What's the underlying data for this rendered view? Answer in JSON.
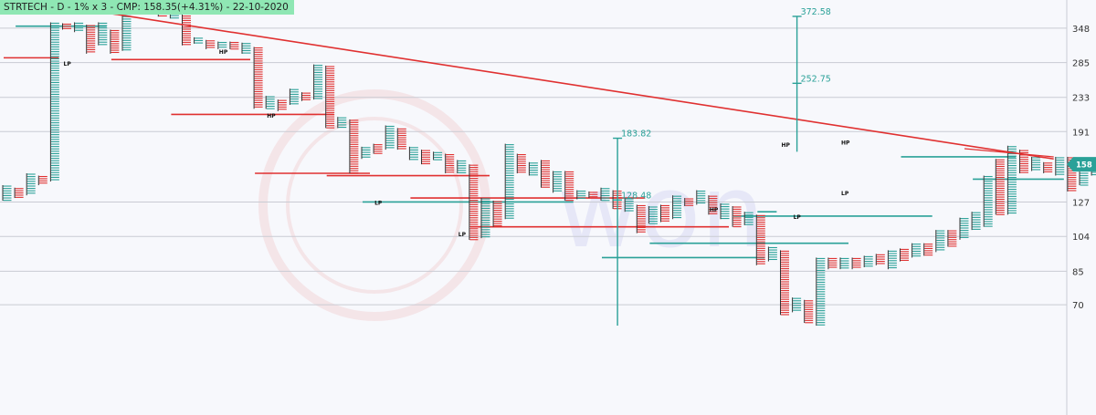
{
  "header": {
    "title": "STRTECH - D - 1% x 3 - CMP: 158.35(+4.31%) - 22-10-2020"
  },
  "watermark": {
    "text": "won"
  },
  "colors": {
    "x_column": "#2aa198",
    "o_column": "#e03030",
    "trendline": "#e03030",
    "target": "#2aa198",
    "price_tag": "#2aa198"
  },
  "chart_data": {
    "type": "point-and-figure",
    "title": "STRTECH - D - 1% x 3 - CMP: 158.35(+4.31%) - 22-10-2020",
    "y_scale": "log",
    "ylim": [
      60,
      420
    ],
    "yticks": [
      348,
      285,
      233,
      191,
      158,
      127,
      104,
      85,
      70
    ],
    "current_price": 158,
    "grid": true,
    "columns": [
      {
        "t": "X",
        "lo": 128,
        "hi": 140
      },
      {
        "t": "O",
        "lo": 130,
        "hi": 138
      },
      {
        "t": "X",
        "lo": 132,
        "hi": 150
      },
      {
        "t": "O",
        "lo": 140,
        "hi": 148
      },
      {
        "t": "X",
        "lo": 143,
        "hi": 360
      },
      {
        "t": "O",
        "lo": 345,
        "hi": 358
      },
      {
        "t": "X",
        "lo": 340,
        "hi": 360
      },
      {
        "t": "O",
        "lo": 300,
        "hi": 355
      },
      {
        "t": "X",
        "lo": 315,
        "hi": 360
      },
      {
        "t": "O",
        "lo": 300,
        "hi": 345
      },
      {
        "t": "X",
        "lo": 305,
        "hi": 395
      },
      {
        "t": "O",
        "lo": 382,
        "hi": 395
      },
      {
        "t": "X",
        "lo": 380,
        "hi": 395
      },
      {
        "t": "O",
        "lo": 372,
        "hi": 395
      },
      {
        "t": "X",
        "lo": 368,
        "hi": 392
      },
      {
        "t": "O",
        "lo": 315,
        "hi": 380
      },
      {
        "t": "X",
        "lo": 318,
        "hi": 330
      },
      {
        "t": "O",
        "lo": 308,
        "hi": 325
      },
      {
        "t": "X",
        "lo": 308,
        "hi": 322
      },
      {
        "t": "O",
        "lo": 308,
        "hi": 322
      },
      {
        "t": "X",
        "lo": 300,
        "hi": 320
      },
      {
        "t": "O",
        "lo": 218,
        "hi": 312
      },
      {
        "t": "X",
        "lo": 218,
        "hi": 235
      },
      {
        "t": "O",
        "lo": 215,
        "hi": 230
      },
      {
        "t": "X",
        "lo": 223,
        "hi": 245
      },
      {
        "t": "O",
        "lo": 228,
        "hi": 240
      },
      {
        "t": "X",
        "lo": 230,
        "hi": 282
      },
      {
        "t": "O",
        "lo": 195,
        "hi": 280
      },
      {
        "t": "X",
        "lo": 195,
        "hi": 208
      },
      {
        "t": "O",
        "lo": 150,
        "hi": 205
      },
      {
        "t": "X",
        "lo": 163,
        "hi": 175
      },
      {
        "t": "O",
        "lo": 168,
        "hi": 178
      },
      {
        "t": "X",
        "lo": 172,
        "hi": 198
      },
      {
        "t": "O",
        "lo": 172,
        "hi": 195
      },
      {
        "t": "X",
        "lo": 162,
        "hi": 175
      },
      {
        "t": "O",
        "lo": 158,
        "hi": 172
      },
      {
        "t": "X",
        "lo": 162,
        "hi": 170
      },
      {
        "t": "O",
        "lo": 150,
        "hi": 168
      },
      {
        "t": "X",
        "lo": 150,
        "hi": 162
      },
      {
        "t": "O",
        "lo": 102,
        "hi": 158
      },
      {
        "t": "X",
        "lo": 103,
        "hi": 130
      },
      {
        "t": "O",
        "lo": 110,
        "hi": 128
      },
      {
        "t": "X",
        "lo": 115,
        "hi": 178
      },
      {
        "t": "O",
        "lo": 150,
        "hi": 168
      },
      {
        "t": "X",
        "lo": 148,
        "hi": 160
      },
      {
        "t": "O",
        "lo": 138,
        "hi": 162
      },
      {
        "t": "X",
        "lo": 134,
        "hi": 152
      },
      {
        "t": "O",
        "lo": 128,
        "hi": 152
      },
      {
        "t": "X",
        "lo": 129,
        "hi": 136
      },
      {
        "t": "O",
        "lo": 130,
        "hi": 135
      },
      {
        "t": "X",
        "lo": 128,
        "hi": 138
      },
      {
        "t": "O",
        "lo": 122,
        "hi": 136
      },
      {
        "t": "X",
        "lo": 120,
        "hi": 130
      },
      {
        "t": "O",
        "lo": 106,
        "hi": 125
      },
      {
        "t": "X",
        "lo": 112,
        "hi": 124
      },
      {
        "t": "O",
        "lo": 113,
        "hi": 125
      },
      {
        "t": "X",
        "lo": 115,
        "hi": 132
      },
      {
        "t": "O",
        "lo": 124,
        "hi": 130
      },
      {
        "t": "X",
        "lo": 125,
        "hi": 136
      },
      {
        "t": "O",
        "lo": 118,
        "hi": 132
      },
      {
        "t": "X",
        "lo": 115,
        "hi": 126
      },
      {
        "t": "O",
        "lo": 110,
        "hi": 124
      },
      {
        "t": "X",
        "lo": 111,
        "hi": 120
      },
      {
        "t": "O",
        "lo": 88,
        "hi": 118
      },
      {
        "t": "X",
        "lo": 90,
        "hi": 98
      },
      {
        "t": "O",
        "lo": 66,
        "hi": 96
      },
      {
        "t": "X",
        "lo": 67,
        "hi": 73
      },
      {
        "t": "O",
        "lo": 63,
        "hi": 72
      },
      {
        "t": "X",
        "lo": 62,
        "hi": 92
      },
      {
        "t": "O",
        "lo": 86,
        "hi": 92
      },
      {
        "t": "X",
        "lo": 86,
        "hi": 92
      },
      {
        "t": "O",
        "lo": 86,
        "hi": 92
      },
      {
        "t": "X",
        "lo": 87,
        "hi": 93
      },
      {
        "t": "O",
        "lo": 88,
        "hi": 94
      },
      {
        "t": "X",
        "lo": 86,
        "hi": 96
      },
      {
        "t": "O",
        "lo": 90,
        "hi": 97
      },
      {
        "t": "X",
        "lo": 92,
        "hi": 100
      },
      {
        "t": "O",
        "lo": 93,
        "hi": 100
      },
      {
        "t": "X",
        "lo": 95,
        "hi": 108
      },
      {
        "t": "O",
        "lo": 98,
        "hi": 108
      },
      {
        "t": "X",
        "lo": 102,
        "hi": 116
      },
      {
        "t": "X",
        "lo": 108,
        "hi": 120
      },
      {
        "t": "X",
        "lo": 110,
        "hi": 148
      },
      {
        "t": "O",
        "lo": 118,
        "hi": 163
      },
      {
        "t": "X",
        "lo": 118,
        "hi": 176
      },
      {
        "t": "O",
        "lo": 150,
        "hi": 172
      },
      {
        "t": "X",
        "lo": 152,
        "hi": 165
      },
      {
        "t": "O",
        "lo": 150,
        "hi": 160
      },
      {
        "t": "X",
        "lo": 148,
        "hi": 165
      },
      {
        "t": "O",
        "lo": 135,
        "hi": 165
      },
      {
        "t": "X",
        "lo": 140,
        "hi": 155
      },
      {
        "t": "X",
        "lo": 148,
        "hi": 158
      }
    ],
    "trendline": {
      "from": {
        "col": 4,
        "price": 398
      },
      "to": {
        "col": 87,
        "price": 163
      }
    },
    "support_lines": [
      {
        "from": 1,
        "to": 8,
        "price": 352
      },
      {
        "from": 0,
        "to": 4,
        "price": 293
      },
      {
        "from": 9,
        "to": 20,
        "price": 290
      },
      {
        "from": 14,
        "to": 27,
        "price": 211
      },
      {
        "from": 21,
        "to": 30,
        "price": 150
      },
      {
        "from": 27,
        "to": 40,
        "price": 148
      },
      {
        "from": 30,
        "to": 47,
        "price": 127
      },
      {
        "from": 34,
        "to": 53,
        "price": 130
      },
      {
        "from": 39,
        "to": 60,
        "price": 110
      },
      {
        "from": 50,
        "to": 63,
        "price": 92
      },
      {
        "from": 54,
        "to": 70,
        "price": 100
      },
      {
        "from": 61,
        "to": 77,
        "price": 117
      },
      {
        "from": 75,
        "to": 84,
        "price": 165
      },
      {
        "from": 81,
        "to": 88,
        "price": 145
      },
      {
        "from": 63,
        "to": 64,
        "price": 120
      }
    ],
    "markers": [
      {
        "label": "HP",
        "col": 3,
        "price": 380
      },
      {
        "label": "LP",
        "col": 5,
        "price": 280
      },
      {
        "label": "HP",
        "col": 18,
        "price": 300
      },
      {
        "label": "HP",
        "col": 22,
        "price": 207
      },
      {
        "label": "LP",
        "col": 31,
        "price": 125
      },
      {
        "label": "LP",
        "col": 38,
        "price": 104
      },
      {
        "label": "HP",
        "col": 59,
        "price": 120
      },
      {
        "label": "HP",
        "col": 65,
        "price": 175
      },
      {
        "label": "LP",
        "col": 66,
        "price": 115
      },
      {
        "label": "HP",
        "col": 70,
        "price": 177
      },
      {
        "label": "LP",
        "col": 70,
        "price": 132
      }
    ],
    "targets": [
      {
        "col": 51,
        "top": 183.82,
        "mid": 128.48,
        "bottom": 62,
        "top_label": "183.82",
        "mid_label": "128.48"
      },
      {
        "col": 66,
        "top": 372.58,
        "mid": 252.75,
        "bottom": 170,
        "top_label": "372.58",
        "mid_label": "252.75"
      }
    ]
  }
}
